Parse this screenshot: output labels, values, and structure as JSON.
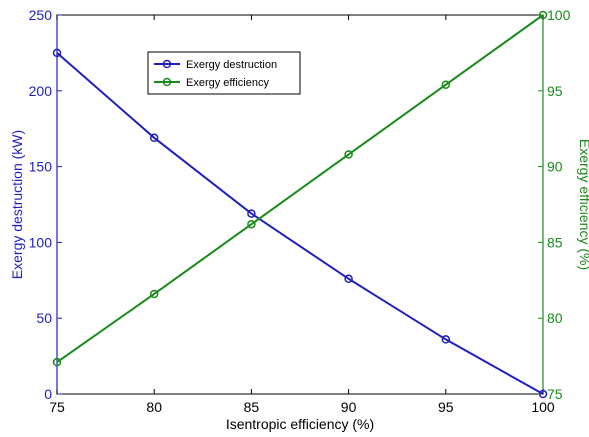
{
  "chart_data": {
    "type": "line",
    "xlabel": "Isentropic efficiency (%)",
    "ylabel_left": "Exergy destruction (kW)",
    "ylabel_right": "Exergy efficiency (%)",
    "xlim": [
      75,
      100
    ],
    "ylim_left": [
      0,
      250
    ],
    "ylim_right": [
      75,
      100
    ],
    "x_ticks": [
      75,
      80,
      85,
      90,
      95,
      100
    ],
    "y_left_ticks": [
      0,
      50,
      100,
      150,
      200,
      250
    ],
    "y_right_ticks": [
      75,
      80,
      85,
      90,
      95,
      100
    ],
    "grid": false,
    "legend_position": "top-left",
    "series": [
      {
        "name": "Exergy destruction",
        "axis": "left",
        "color": "#1f1fbf",
        "marker": "circle",
        "x": [
          75,
          80,
          85,
          90,
          95,
          100
        ],
        "values": [
          225,
          169,
          119,
          76,
          36,
          0
        ]
      },
      {
        "name": "Exergy efficiency",
        "axis": "right",
        "color": "#1a8a1a",
        "marker": "circle",
        "x": [
          75,
          80,
          85,
          90,
          95,
          100
        ],
        "values": [
          77.1,
          81.6,
          86.2,
          90.8,
          95.4,
          100
        ]
      }
    ]
  },
  "colors": {
    "left_axis": "#1f1fbf",
    "right_axis": "#1a8a1a",
    "bottom_axis": "#000000"
  }
}
